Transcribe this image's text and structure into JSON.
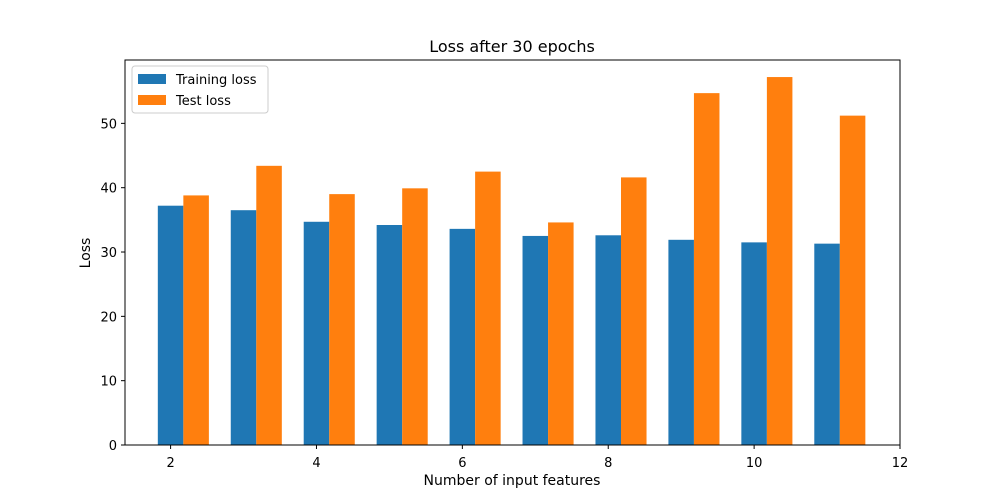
{
  "chart_data": {
    "type": "bar",
    "title": "Loss after 30 epochs",
    "xlabel": "Number of input features",
    "ylabel": "Loss",
    "xlim": [
      1.375,
      12.0
    ],
    "ylim": [
      0,
      59.85
    ],
    "xticks": [
      2,
      4,
      6,
      8,
      10,
      12
    ],
    "yticks": [
      0,
      10,
      20,
      30,
      40,
      50
    ],
    "bar_width": 0.35,
    "x": [
      2,
      3,
      4,
      5,
      6,
      7,
      8,
      9,
      10,
      11
    ],
    "grid": false,
    "legend_position": "top-left",
    "series": [
      {
        "name": "Training loss",
        "color": "#1f77b4",
        "values": [
          37.2,
          36.5,
          34.7,
          34.2,
          33.6,
          32.5,
          32.6,
          31.9,
          31.5,
          31.3
        ]
      },
      {
        "name": "Test loss",
        "color": "#ff7f0e",
        "values": [
          38.8,
          43.4,
          39.0,
          39.9,
          42.5,
          34.6,
          41.6,
          54.7,
          57.2,
          51.2
        ]
      }
    ]
  }
}
